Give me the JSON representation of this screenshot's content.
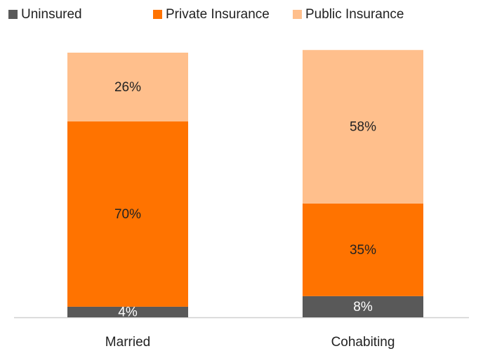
{
  "chart_data": {
    "type": "stacked_bar",
    "categories": [
      "Married",
      "Cohabiting"
    ],
    "series": [
      {
        "name": "Uninsured",
        "color": "#595959",
        "values": [
          4,
          8
        ],
        "value_labels": [
          "4%",
          "8%"
        ]
      },
      {
        "name": "Private Insurance",
        "color": "#ff7300",
        "values": [
          70,
          35
        ],
        "value_labels": [
          "70%",
          "35%"
        ]
      },
      {
        "name": "Public Insurance",
        "color": "#ffbf8c",
        "values": [
          26,
          58
        ],
        "value_labels": [
          "26%",
          "58%"
        ]
      }
    ],
    "ylim": [
      0,
      100
    ],
    "legend": "top"
  }
}
